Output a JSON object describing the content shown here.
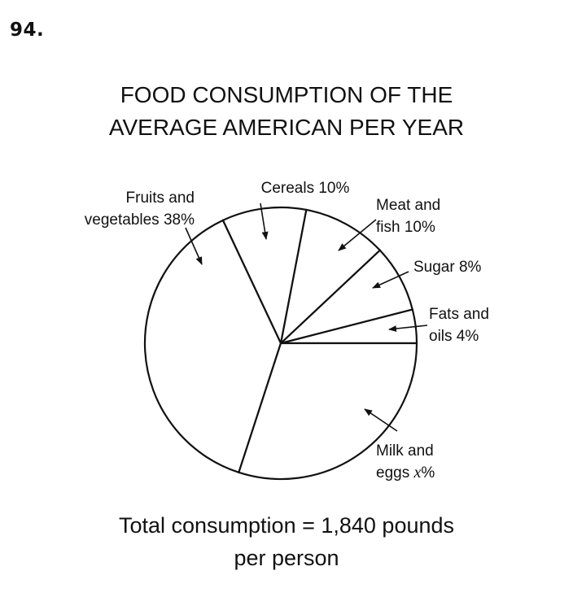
{
  "problem_number": "94.",
  "chart_data": {
    "type": "pie",
    "title_lines": [
      "FOOD CONSUMPTION OF THE",
      "AVERAGE AMERICAN PER YEAR"
    ],
    "slices": [
      {
        "label_lines": [
          "Fats and",
          "oils 4%"
        ],
        "percent": 4
      },
      {
        "label_lines": [
          "Sugar 8%"
        ],
        "percent": 8
      },
      {
        "label_lines": [
          "Meat and",
          "fish 10%"
        ],
        "percent": 10
      },
      {
        "label_lines": [
          "Cereals 10%"
        ],
        "percent": 10
      },
      {
        "label_lines": [
          "Fruits and",
          "vegetables 38%"
        ],
        "percent": 38
      },
      {
        "label_lines": [
          "Milk and",
          "eggs "
        ],
        "variable": "x",
        "suffix": "%",
        "percent": 30
      }
    ],
    "footer_lines": [
      "Total consumption = 1,840 pounds",
      "per person"
    ]
  }
}
